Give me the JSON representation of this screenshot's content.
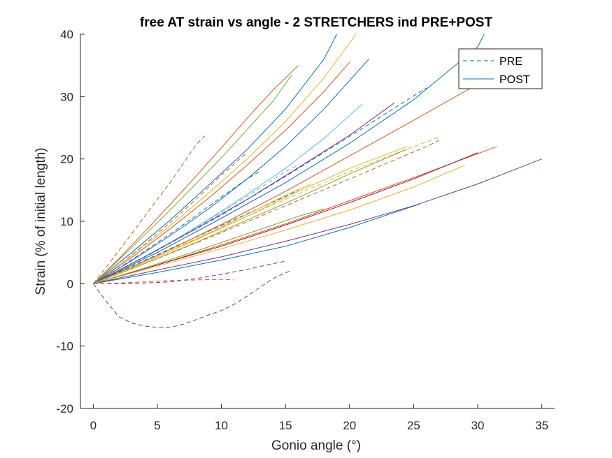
{
  "chart_data": {
    "type": "line",
    "title": "free AT strain vs angle - 2 STRETCHERS ind PRE+POST",
    "xlabel": "Gonio angle (°)",
    "ylabel": "Strain (% of initial length)",
    "xlim": [
      -1,
      36
    ],
    "ylim": [
      -20,
      40
    ],
    "xticks": [
      0,
      5,
      10,
      15,
      20,
      25,
      30,
      35
    ],
    "yticks": [
      -20,
      -10,
      0,
      10,
      20,
      30,
      40
    ],
    "xtick_labels": [
      "0",
      "5",
      "10",
      "15",
      "20",
      "25",
      "30",
      "35"
    ],
    "ytick_labels": [
      "-20",
      "-10",
      "0",
      "10",
      "20",
      "30",
      "40"
    ],
    "grid": false,
    "legend": {
      "placement": "top-right",
      "entries": [
        {
          "label": "PRE",
          "style": "dashed",
          "color": "#0072BD"
        },
        {
          "label": "POST",
          "style": "solid",
          "color": "#0072BD"
        }
      ]
    },
    "series": [
      {
        "group": "PRE",
        "color": "#D95319",
        "x": [
          0,
          1,
          2,
          3,
          4,
          5,
          6,
          7,
          8,
          8.7
        ],
        "y": [
          0,
          2.6,
          5.3,
          8.0,
          10.8,
          13.5,
          16.2,
          19.2,
          22.2,
          23.7
        ]
      },
      {
        "group": "PRE",
        "color": "#D95319",
        "x": [
          0,
          2,
          4,
          6,
          8,
          10,
          12
        ],
        "y": [
          0,
          3.0,
          6.3,
          9.8,
          13.5,
          17.4,
          21.0
        ]
      },
      {
        "group": "PRE",
        "color": "#0072BD",
        "x": [
          0,
          2,
          4,
          6,
          8,
          10,
          12,
          13
        ],
        "y": [
          0,
          2.5,
          5.2,
          8.0,
          10.9,
          13.9,
          16.8,
          18.0
        ]
      },
      {
        "group": "PRE",
        "color": "#4DBEEE",
        "x": [
          0,
          3,
          6,
          9,
          12,
          15,
          16
        ],
        "y": [
          0,
          3.0,
          6.5,
          10.2,
          14.0,
          18.0,
          19.0
        ]
      },
      {
        "group": "PRE",
        "color": "#7E2F8E",
        "x": [
          0,
          2,
          4,
          6,
          8,
          10,
          12,
          14,
          15
        ],
        "y": [
          0,
          0.0,
          0.1,
          0.3,
          0.8,
          1.5,
          2.3,
          3.2,
          3.6
        ]
      },
      {
        "group": "PRE",
        "color": "#7E2F8E",
        "x": [
          0,
          1,
          2,
          3,
          4,
          5,
          6,
          7,
          8,
          9,
          10,
          11,
          12,
          13,
          14,
          15.5
        ],
        "y": [
          0,
          -2.8,
          -5.3,
          -6.3,
          -6.8,
          -7.0,
          -7.0,
          -6.5,
          -5.8,
          -5.0,
          -4.3,
          -3.3,
          -2.0,
          -0.6,
          0.8,
          2.2
        ]
      },
      {
        "group": "PRE",
        "color": "#D95319",
        "x": [
          0,
          2,
          4,
          6,
          8,
          10,
          11
        ],
        "y": [
          0,
          0.1,
          0.3,
          0.5,
          0.6,
          0.7,
          0.6
        ]
      },
      {
        "group": "PRE",
        "color": "#0072BD",
        "x": [
          0,
          5,
          10,
          15,
          20,
          25,
          26
        ],
        "y": [
          0,
          5.4,
          11.0,
          17.2,
          23.6,
          30.1,
          31.4
        ]
      },
      {
        "group": "PRE",
        "color": "#EDB120",
        "x": [
          0,
          5,
          10,
          15,
          20,
          25,
          27
        ],
        "y": [
          0,
          4.5,
          9.0,
          13.5,
          18.0,
          22.0,
          23.5
        ]
      },
      {
        "group": "PRE",
        "color": "#D95319",
        "x": [
          0,
          5,
          10,
          15,
          20,
          26,
          27
        ],
        "y": [
          0,
          4.0,
          8.2,
          12.5,
          16.8,
          22.0,
          23.0
        ]
      },
      {
        "group": "PRE",
        "color": "#0072BD",
        "x": [
          0,
          3,
          6,
          9,
          12,
          15,
          16
        ],
        "y": [
          0,
          2.8,
          5.6,
          8.4,
          11.2,
          14.0,
          15.0
        ]
      },
      {
        "group": "POST",
        "color": "#D95319",
        "x": [
          0,
          2,
          4,
          6,
          8,
          10,
          12,
          14,
          16
        ],
        "y": [
          0,
          4.0,
          8.3,
          12.7,
          17.2,
          21.8,
          26.5,
          31.0,
          35.0
        ]
      },
      {
        "group": "POST",
        "color": "#77AC30",
        "x": [
          0,
          2,
          4,
          6,
          8,
          10,
          12,
          14,
          15.5
        ],
        "y": [
          0,
          3.8,
          7.8,
          11.8,
          16.0,
          20.2,
          24.7,
          29.2,
          33.5
        ]
      },
      {
        "group": "POST",
        "color": "#0072BD",
        "x": [
          0,
          3,
          6,
          9,
          12,
          15,
          18,
          19
        ],
        "y": [
          0,
          5.0,
          10.2,
          15.8,
          21.5,
          28.0,
          36.0,
          40.0
        ]
      },
      {
        "group": "POST",
        "color": "#EDB120",
        "x": [
          0,
          3,
          6,
          9,
          12,
          15,
          18,
          20.5
        ],
        "y": [
          0,
          4.5,
          9.3,
          14.5,
          20.0,
          26.0,
          33.0,
          40.0
        ]
      },
      {
        "group": "POST",
        "color": "#D95319",
        "x": [
          0,
          3,
          6,
          9,
          12,
          15,
          18,
          20
        ],
        "y": [
          0,
          4.2,
          8.8,
          13.7,
          19.0,
          24.6,
          30.8,
          35.5
        ]
      },
      {
        "group": "POST",
        "color": "#0072BD",
        "x": [
          0,
          3,
          6,
          9,
          12,
          15,
          18,
          21.5
        ],
        "y": [
          0,
          3.7,
          7.7,
          12.0,
          16.8,
          22.0,
          28.0,
          36.0
        ]
      },
      {
        "group": "POST",
        "color": "#4DBEEE",
        "x": [
          0,
          3,
          6,
          9,
          12,
          15,
          18,
          21
        ],
        "y": [
          0,
          3.2,
          6.6,
          10.3,
          14.3,
          18.5,
          23.3,
          28.8
        ]
      },
      {
        "group": "POST",
        "color": "#D95319",
        "x": [
          0,
          5,
          10,
          15,
          20,
          25,
          30,
          32.5
        ],
        "y": [
          0,
          4.5,
          9.5,
          14.8,
          20.5,
          26.2,
          32.0,
          35.0
        ]
      },
      {
        "group": "POST",
        "color": "#0072BD",
        "x": [
          0,
          5,
          10,
          15,
          20,
          25,
          30,
          30.5
        ],
        "y": [
          0,
          5.0,
          10.5,
          16.2,
          22.5,
          29.5,
          38.0,
          40.0
        ]
      },
      {
        "group": "POST",
        "color": "#7E2F8E",
        "x": [
          0,
          4,
          8,
          12,
          16,
          20,
          23.5
        ],
        "y": [
          0,
          4.3,
          8.8,
          13.5,
          18.6,
          23.8,
          29.0
        ]
      },
      {
        "group": "POST",
        "color": "#EDB120",
        "x": [
          0,
          4,
          8,
          12,
          16,
          20,
          24.5
        ],
        "y": [
          0,
          3.4,
          7.0,
          10.8,
          14.8,
          18.5,
          22.0
        ]
      },
      {
        "group": "POST",
        "color": "#77AC30",
        "x": [
          0,
          4,
          8,
          12,
          16,
          20,
          24.5
        ],
        "y": [
          0,
          3.2,
          6.6,
          10.2,
          13.8,
          17.6,
          21.6
        ]
      },
      {
        "group": "POST",
        "color": "#D95319",
        "x": [
          0,
          5,
          10,
          15,
          20,
          25,
          31.5
        ],
        "y": [
          0,
          3.0,
          6.2,
          9.6,
          13.3,
          17.0,
          22.0
        ]
      },
      {
        "group": "POST",
        "color": "#A2142F",
        "x": [
          0,
          5,
          10,
          15,
          20,
          25,
          30
        ],
        "y": [
          0,
          3.0,
          6.0,
          9.4,
          13.0,
          16.8,
          21.0
        ]
      },
      {
        "group": "POST",
        "color": "#EDB120",
        "x": [
          0,
          5,
          10,
          15,
          20,
          25,
          29
        ],
        "y": [
          0,
          2.8,
          5.6,
          8.6,
          11.8,
          15.5,
          19.0
        ]
      },
      {
        "group": "POST",
        "color": "#7E2F8E",
        "x": [
          0,
          5,
          10,
          15,
          20,
          25,
          30,
          35
        ],
        "y": [
          0,
          2.2,
          4.3,
          6.8,
          9.5,
          12.5,
          16.0,
          20.0
        ]
      },
      {
        "group": "POST",
        "color": "#0072BD",
        "x": [
          0,
          5,
          10,
          15,
          20,
          25.5
        ],
        "y": [
          0,
          1.8,
          3.8,
          6.0,
          9.0,
          12.8
        ]
      },
      {
        "group": "POST",
        "color": "#77AC30",
        "x": [
          0,
          4,
          8,
          12,
          16,
          18
        ],
        "y": [
          0,
          2.5,
          5.2,
          8.0,
          10.8,
          12.0
        ]
      },
      {
        "group": "POST",
        "color": "#EDB120",
        "x": [
          0,
          3,
          6,
          9,
          12,
          15,
          17
        ],
        "y": [
          0,
          2.5,
          5.2,
          8.1,
          11.1,
          14.2,
          16.0
        ]
      }
    ]
  }
}
